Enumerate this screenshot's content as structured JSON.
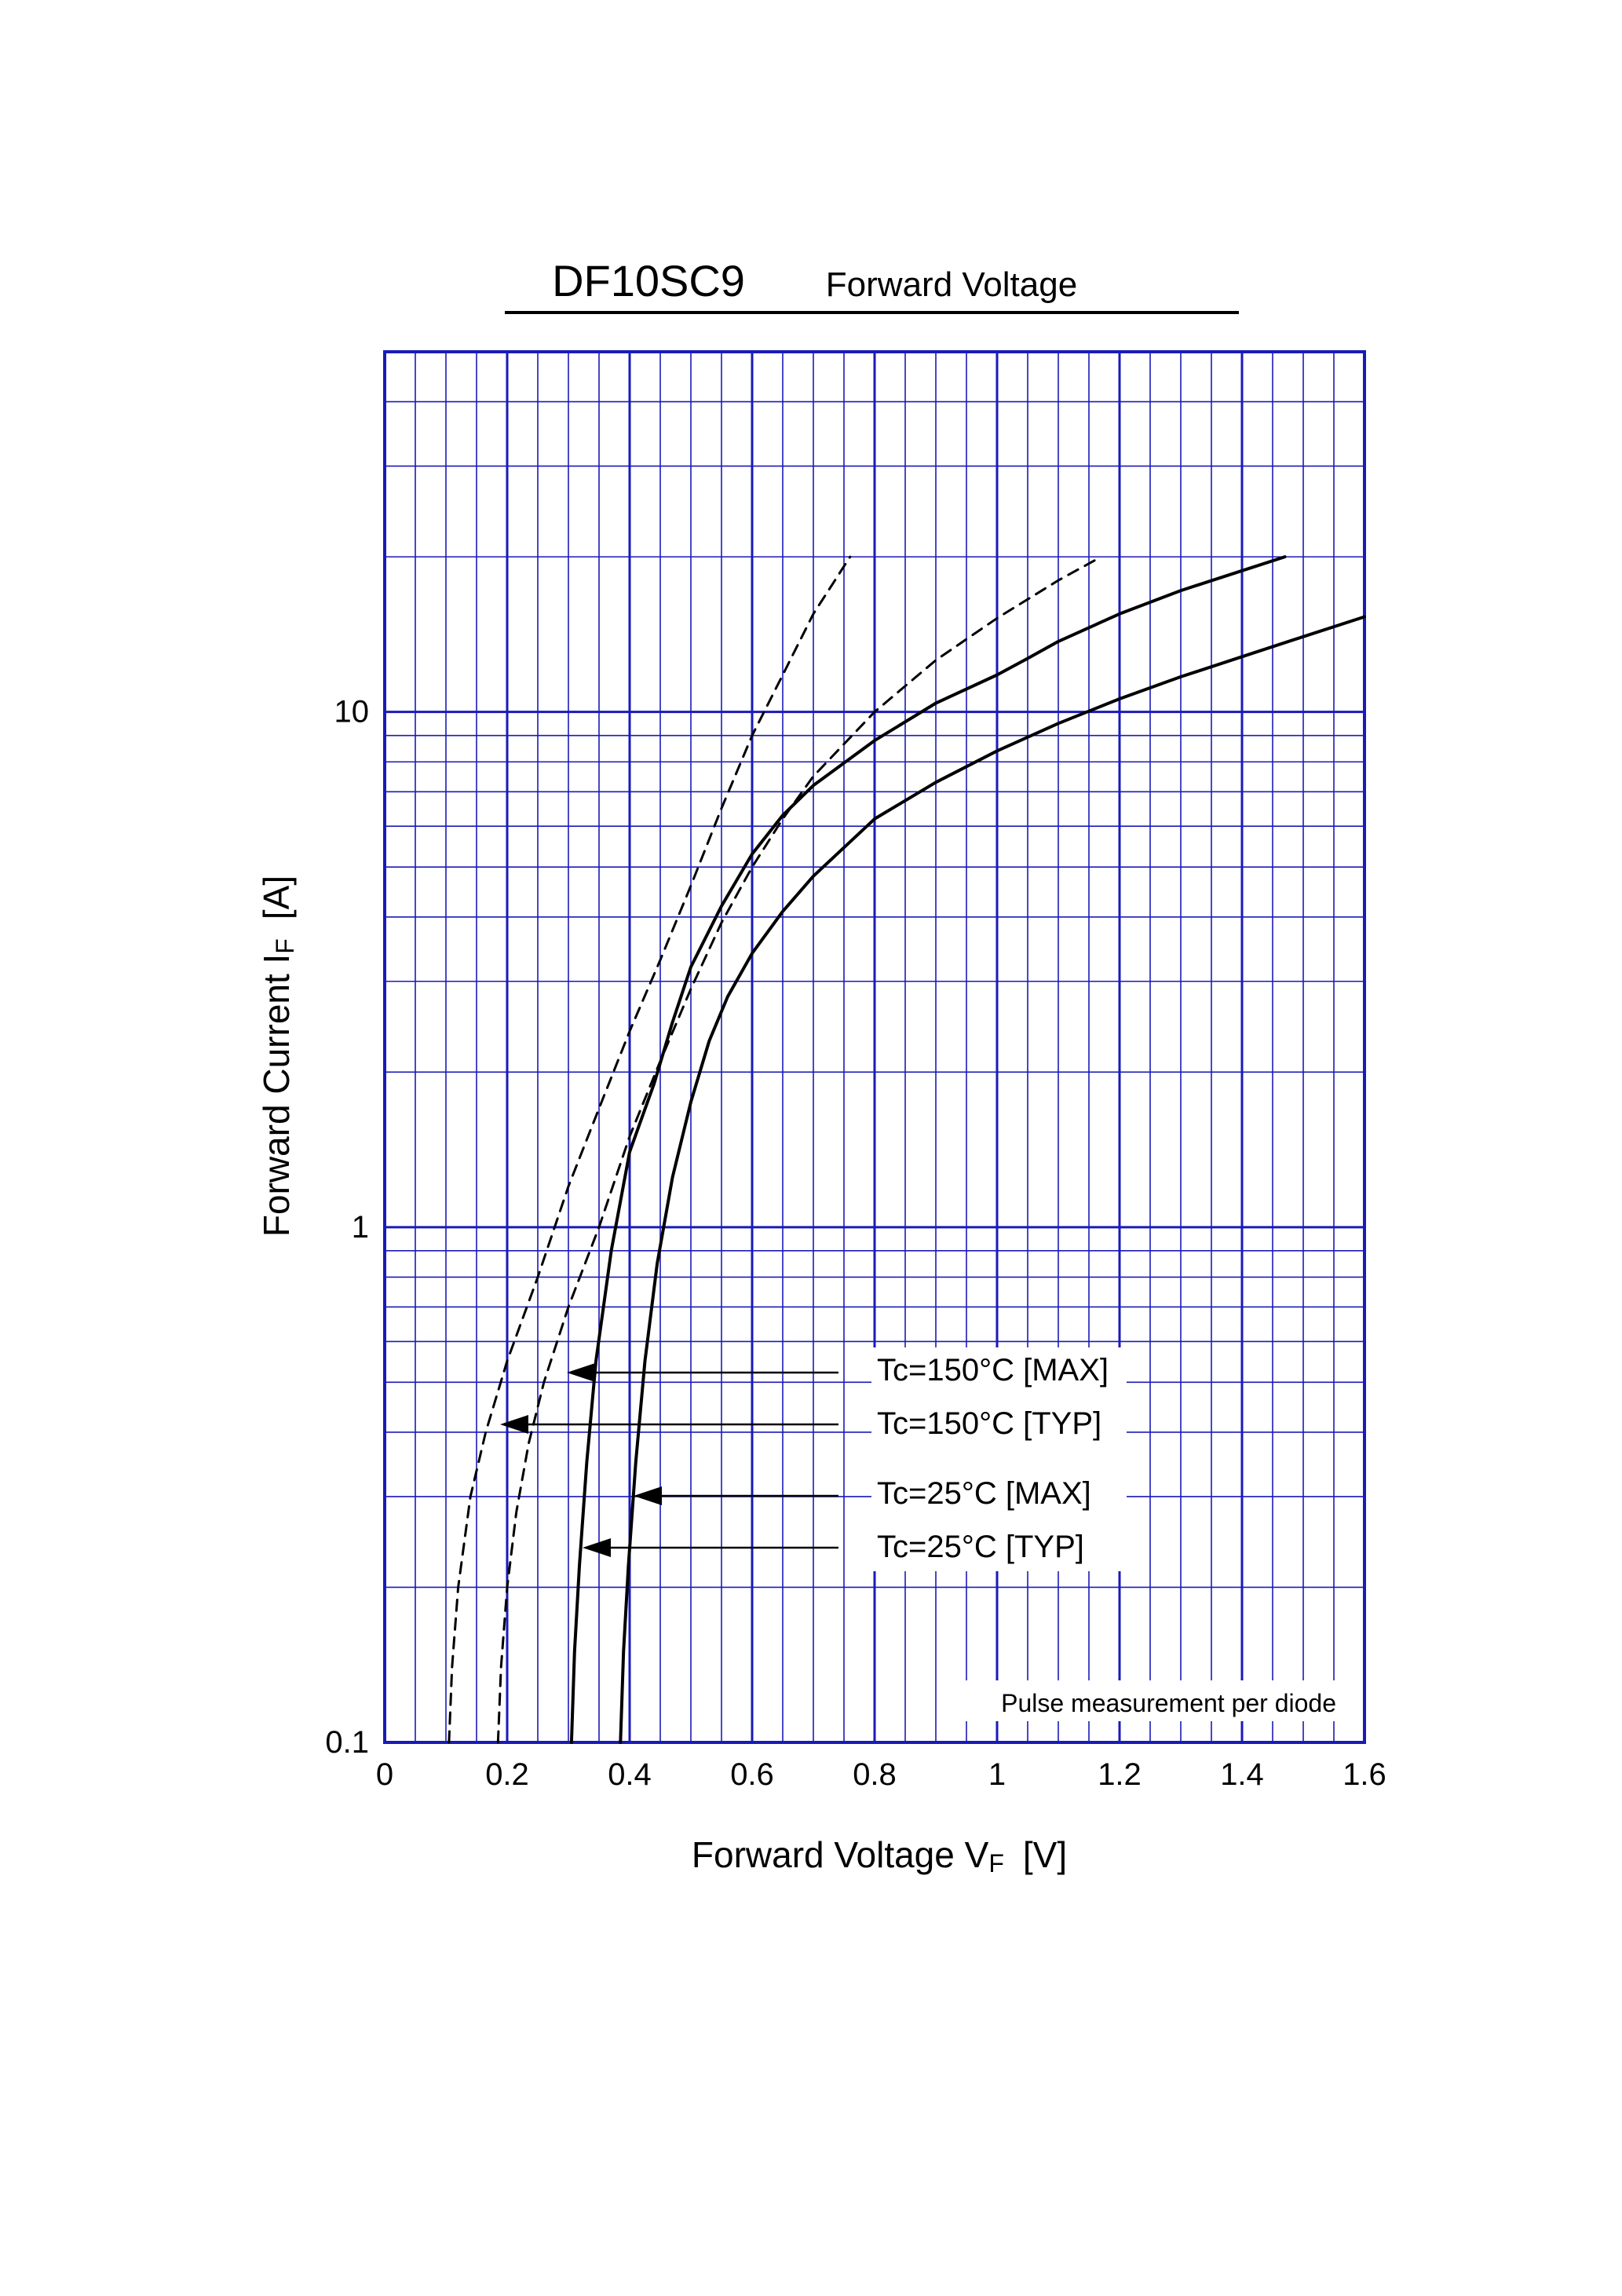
{
  "header": {
    "part_number": "DF10SC9",
    "subtitle": "Forward  Voltage"
  },
  "colors": {
    "grid": "#1a1ab8",
    "curve": "#000000",
    "background": "#ffffff"
  },
  "chart_data": {
    "type": "line",
    "title": "DF10SC9",
    "subtitle": "Forward  Voltage",
    "xlabel": "Forward Voltage  V",
    "xlabel_sub": "F",
    "xlabel_unit": "[V]",
    "ylabel": "Forward Current  I",
    "ylabel_sub": "F",
    "ylabel_unit": "[A]",
    "xlim": [
      0,
      1.6
    ],
    "ylim": [
      0.1,
      50
    ],
    "yscale": "log",
    "grid": true,
    "x_ticks": [
      {
        "value": 0,
        "label": "0"
      },
      {
        "value": 0.2,
        "label": "0.2"
      },
      {
        "value": 0.4,
        "label": "0.4"
      },
      {
        "value": 0.6,
        "label": "0.6"
      },
      {
        "value": 0.8,
        "label": "0.8"
      },
      {
        "value": 1.0,
        "label": "1"
      },
      {
        "value": 1.2,
        "label": "1.2"
      },
      {
        "value": 1.4,
        "label": "1.4"
      },
      {
        "value": 1.6,
        "label": "1.6"
      }
    ],
    "y_ticks": [
      {
        "value": 0.1,
        "label": "0.1"
      },
      {
        "value": 1,
        "label": "1"
      },
      {
        "value": 10,
        "label": "10"
      }
    ],
    "annotation": "Pulse  measurement  per  diode",
    "series": [
      {
        "name": "Tc=150°C [MAX]",
        "dash": false,
        "x": [
          0.305,
          0.31,
          0.318,
          0.33,
          0.345,
          0.37,
          0.4,
          0.44,
          0.47,
          0.5,
          0.55,
          0.6,
          0.65,
          0.7,
          0.8,
          0.9,
          1.0,
          1.05,
          1.1,
          1.2,
          1.3,
          1.4,
          1.47
        ],
        "y": [
          0.1,
          0.15,
          0.22,
          0.35,
          0.55,
          0.9,
          1.4,
          1.9,
          2.5,
          3.2,
          4.2,
          5.3,
          6.3,
          7.2,
          8.8,
          10.4,
          11.8,
          12.7,
          13.7,
          15.5,
          17.2,
          18.8,
          20
        ]
      },
      {
        "name": "Tc=150°C [TYP]",
        "dash": true,
        "x": [
          0.105,
          0.11,
          0.12,
          0.14,
          0.165,
          0.2,
          0.25,
          0.3,
          0.35,
          0.4,
          0.45,
          0.5,
          0.55,
          0.6,
          0.65,
          0.7,
          0.76
        ],
        "y": [
          0.1,
          0.14,
          0.2,
          0.3,
          0.4,
          0.55,
          0.8,
          1.2,
          1.7,
          2.4,
          3.3,
          4.6,
          6.5,
          9.0,
          11.8,
          15.5,
          20
        ]
      },
      {
        "name": "Tc=25°C [MAX]",
        "dash": false,
        "x": [
          0.385,
          0.39,
          0.398,
          0.41,
          0.425,
          0.445,
          0.47,
          0.5,
          0.53,
          0.56,
          0.6,
          0.65,
          0.7,
          0.8,
          0.9,
          1.0,
          1.1,
          1.2,
          1.3,
          1.4,
          1.5,
          1.6
        ],
        "y": [
          0.1,
          0.15,
          0.22,
          0.35,
          0.55,
          0.85,
          1.25,
          1.75,
          2.3,
          2.8,
          3.4,
          4.1,
          4.8,
          6.2,
          7.3,
          8.4,
          9.5,
          10.6,
          11.7,
          12.8,
          14.0,
          15.3
        ]
      },
      {
        "name": "Tc=25°C [TYP]",
        "dash": true,
        "x": [
          0.185,
          0.19,
          0.2,
          0.215,
          0.235,
          0.26,
          0.3,
          0.35,
          0.4,
          0.45,
          0.5,
          0.55,
          0.6,
          0.65,
          0.7,
          0.8,
          0.9,
          1.0,
          1.1,
          1.17
        ],
        "y": [
          0.1,
          0.14,
          0.2,
          0.28,
          0.38,
          0.5,
          0.7,
          1.0,
          1.5,
          2.1,
          2.9,
          3.9,
          5.0,
          6.2,
          7.5,
          10.0,
          12.6,
          15.2,
          18.0,
          20
        ]
      }
    ]
  }
}
